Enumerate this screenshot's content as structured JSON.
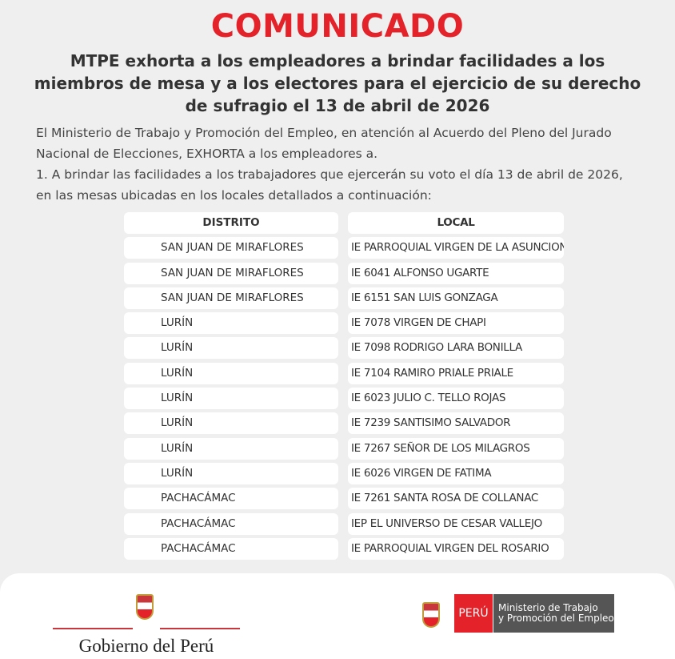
{
  "title": "COMUNICADO",
  "subtitle": [
    "MTPE exhorta a los empleadores a brindar facilidades a los",
    "miembros de mesa y a los electores para el ejercicio de su derecho",
    "de sufragio el 13 de abril de 2026"
  ],
  "body": [
    "El Ministerio de Trabajo y Promoción del Empleo, en atención al Acuerdo del  Pleno del Jurado",
    "Nacional de Elecciones, EXHORTA a los empleadores a.",
    "1.    A brindar las facilidades a los trabajadores que ejercerán su voto el día 13 de abril de 2026,",
    "en las mesas ubicadas en los locales detallados a continuación:"
  ],
  "table": {
    "headers": [
      "DISTRITO",
      "LOCAL"
    ],
    "rows": [
      [
        "SAN JUAN DE MIRAFLORES",
        "IE PARROQUIAL VIRGEN DE LA ASUNCION"
      ],
      [
        "SAN JUAN DE MIRAFLORES",
        "IE 6041 ALFONSO UGARTE"
      ],
      [
        "SAN JUAN DE MIRAFLORES",
        "IE 6151 SAN LUIS GONZAGA"
      ],
      [
        "LURÍN",
        "IE 7078 VIRGEN DE CHAPI"
      ],
      [
        "LURÍN",
        "IE 7098 RODRIGO LARA BONILLA"
      ],
      [
        "LURÍN",
        "IE 7104 RAMIRO PRIALE PRIALE"
      ],
      [
        "LURÍN",
        "IE 6023 JULIO C. TELLO ROJAS"
      ],
      [
        "LURÍN",
        "IE 7239 SANTISIMO SALVADOR"
      ],
      [
        "LURÍN",
        "IE 7267 SEÑOR DE LOS MILAGROS"
      ],
      [
        "LURÍN",
        "IE 6026 VIRGEN DE FATIMA"
      ],
      [
        "PACHACÁMAC",
        "IE 7261 SANTA ROSA DE COLLANAC"
      ],
      [
        "PACHACÁMAC",
        "IEP EL UNIVERSO DE CESAR VALLEJO"
      ],
      [
        "PACHACÁMAC",
        "IE PARROQUIAL VIRGEN DEL ROSARIO"
      ]
    ]
  },
  "footer": {
    "gobierno": "Gobierno del Perú",
    "peru": "PERÚ",
    "ministerio": [
      "Ministerio de Trabajo",
      "y Promoción del Empleo"
    ]
  },
  "colors": {
    "accent": "#e4222a",
    "background": "#efefef"
  }
}
